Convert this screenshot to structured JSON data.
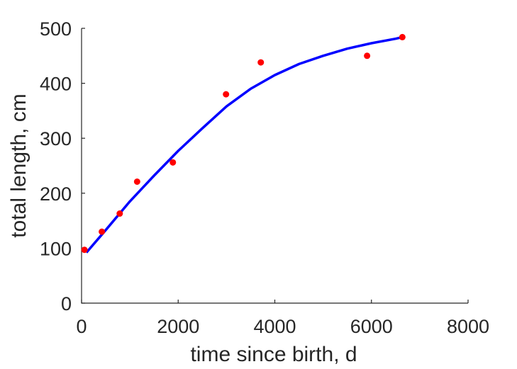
{
  "chart_data": {
    "type": "scatter",
    "xlabel": "time since birth, d",
    "ylabel": "total length, cm",
    "xlim": [
      0,
      8000
    ],
    "ylim": [
      0,
      500
    ],
    "xticks": [
      0,
      2000,
      4000,
      6000,
      8000
    ],
    "yticks": [
      0,
      100,
      200,
      300,
      400,
      500
    ],
    "xtick_labels": [
      "0",
      "2000",
      "4000",
      "6000",
      "8000"
    ],
    "ytick_labels": [
      "0",
      "100",
      "200",
      "300",
      "400",
      "500"
    ],
    "grid": false,
    "series": [
      {
        "kind": "scatter",
        "color": "#ff0000",
        "x": [
          60,
          420,
          790,
          1150,
          1890,
          2990,
          3710,
          5910,
          6640
        ],
        "y": [
          97,
          130,
          163,
          221,
          256,
          380,
          438,
          450,
          484
        ]
      },
      {
        "kind": "line",
        "color": "#0000ff",
        "x": [
          100,
          500,
          1000,
          1500,
          2000,
          2500,
          3000,
          3500,
          4000,
          4500,
          5000,
          5500,
          6000,
          6500,
          6640
        ],
        "y": [
          92,
          133,
          185,
          232,
          277,
          318,
          358,
          390,
          415,
          435,
          450,
          463,
          473,
          481,
          484
        ]
      }
    ]
  }
}
